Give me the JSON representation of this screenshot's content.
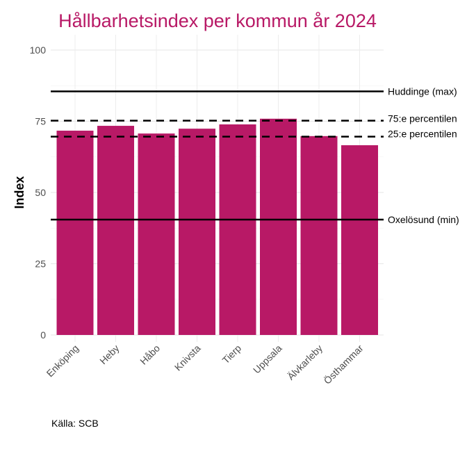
{
  "chart_data": {
    "type": "bar",
    "title": "Hållbarhetsindex per kommun år 2024",
    "xlabel": "",
    "ylabel": "Index",
    "ylim": [
      0,
      100
    ],
    "yticks": [
      0,
      25,
      50,
      75,
      100
    ],
    "categories": [
      "Enköping",
      "Heby",
      "Håbo",
      "Knivsta",
      "Tierp",
      "Uppsala",
      "Älvkarleby",
      "Östhammar"
    ],
    "values": [
      71.7,
      73.4,
      70.7,
      72.4,
      73.9,
      75.9,
      69.8,
      66.6
    ],
    "bar_color": "#B81966",
    "title_color": "#B81966",
    "reference_lines": [
      {
        "label": "Huddinge (max)",
        "value": 85.5,
        "style": "solid"
      },
      {
        "label": "75:e percentilen",
        "value": 75.2,
        "style": "dashed"
      },
      {
        "label": "25:e percentilen",
        "value": 69.6,
        "style": "dashed"
      },
      {
        "label": "Oxelösund (min)",
        "value": 40.5,
        "style": "solid"
      }
    ],
    "caption": "Källa: SCB",
    "grid": true
  }
}
